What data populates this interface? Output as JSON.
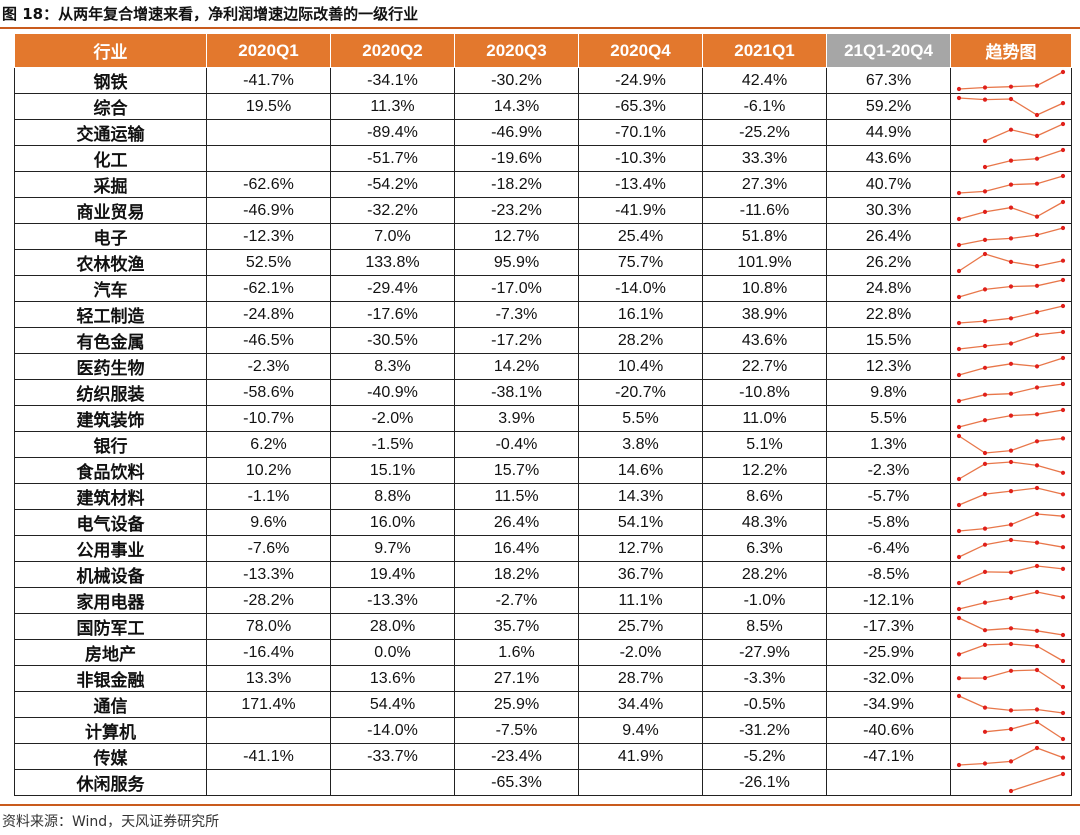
{
  "figure": {
    "title": "图 18：从两年复合增速来看，净利润增速边际改善的一级行业",
    "source": "资料来源：Wind，天风证券研究所"
  },
  "table": {
    "headers": [
      "行业",
      "2020Q1",
      "2020Q2",
      "2020Q3",
      "2020Q4",
      "2021Q1",
      "21Q1-20Q4",
      "趋势图"
    ],
    "colors": {
      "header_bg": "#e3782d",
      "diff_header_bg": "#a6a6a6",
      "sparkline_line": "#e8774a",
      "sparkline_marker": "#e0201b"
    },
    "rows": [
      {
        "name": "钢铁",
        "q1_20": "-41.7%",
        "q2_20": "-34.1%",
        "q3_20": "-30.2%",
        "q4_20": "-24.9%",
        "q1_21": "42.4%",
        "diff": "67.3%",
        "series": [
          -41.7,
          -34.1,
          -30.2,
          -24.9,
          42.4
        ]
      },
      {
        "name": "综合",
        "q1_20": "19.5%",
        "q2_20": "11.3%",
        "q3_20": "14.3%",
        "q4_20": "-65.3%",
        "q1_21": "-6.1%",
        "diff": "59.2%",
        "series": [
          19.5,
          11.3,
          14.3,
          -65.3,
          -6.1
        ]
      },
      {
        "name": "交通运输",
        "q1_20": "",
        "q2_20": "-89.4%",
        "q3_20": "-46.9%",
        "q4_20": "-70.1%",
        "q1_21": "-25.2%",
        "diff": "44.9%",
        "series": [
          null,
          -89.4,
          -46.9,
          -70.1,
          -25.2
        ]
      },
      {
        "name": "化工",
        "q1_20": "",
        "q2_20": "-51.7%",
        "q3_20": "-19.6%",
        "q4_20": "-10.3%",
        "q1_21": "33.3%",
        "diff": "43.6%",
        "series": [
          null,
          -51.7,
          -19.6,
          -10.3,
          33.3
        ]
      },
      {
        "name": "采掘",
        "q1_20": "-62.6%",
        "q2_20": "-54.2%",
        "q3_20": "-18.2%",
        "q4_20": "-13.4%",
        "q1_21": "27.3%",
        "diff": "40.7%",
        "series": [
          -62.6,
          -54.2,
          -18.2,
          -13.4,
          27.3
        ]
      },
      {
        "name": "商业贸易",
        "q1_20": "-46.9%",
        "q2_20": "-32.2%",
        "q3_20": "-23.2%",
        "q4_20": "-41.9%",
        "q1_21": "-11.6%",
        "diff": "30.3%",
        "series": [
          -46.9,
          -32.2,
          -23.2,
          -41.9,
          -11.6
        ]
      },
      {
        "name": "电子",
        "q1_20": "-12.3%",
        "q2_20": "7.0%",
        "q3_20": "12.7%",
        "q4_20": "25.4%",
        "q1_21": "51.8%",
        "diff": "26.4%",
        "series": [
          -12.3,
          7.0,
          12.7,
          25.4,
          51.8
        ]
      },
      {
        "name": "农林牧渔",
        "q1_20": "52.5%",
        "q2_20": "133.8%",
        "q3_20": "95.9%",
        "q4_20": "75.7%",
        "q1_21": "101.9%",
        "diff": "26.2%",
        "series": [
          52.5,
          133.8,
          95.9,
          75.7,
          101.9
        ]
      },
      {
        "name": "汽车",
        "q1_20": "-62.1%",
        "q2_20": "-29.4%",
        "q3_20": "-17.0%",
        "q4_20": "-14.0%",
        "q1_21": "10.8%",
        "diff": "24.8%",
        "series": [
          -62.1,
          -29.4,
          -17.0,
          -14.0,
          10.8
        ]
      },
      {
        "name": "轻工制造",
        "q1_20": "-24.8%",
        "q2_20": "-17.6%",
        "q3_20": "-7.3%",
        "q4_20": "16.1%",
        "q1_21": "38.9%",
        "diff": "22.8%",
        "series": [
          -24.8,
          -17.6,
          -7.3,
          16.1,
          38.9
        ]
      },
      {
        "name": "有色金属",
        "q1_20": "-46.5%",
        "q2_20": "-30.5%",
        "q3_20": "-17.2%",
        "q4_20": "28.2%",
        "q1_21": "43.6%",
        "diff": "15.5%",
        "series": [
          -46.5,
          -30.5,
          -17.2,
          28.2,
          43.6
        ]
      },
      {
        "name": "医药生物",
        "q1_20": "-2.3%",
        "q2_20": "8.3%",
        "q3_20": "14.2%",
        "q4_20": "10.4%",
        "q1_21": "22.7%",
        "diff": "12.3%",
        "series": [
          -2.3,
          8.3,
          14.2,
          10.4,
          22.7
        ]
      },
      {
        "name": "纺织服装",
        "q1_20": "-58.6%",
        "q2_20": "-40.9%",
        "q3_20": "-38.1%",
        "q4_20": "-20.7%",
        "q1_21": "-10.8%",
        "diff": "9.8%",
        "series": [
          -58.6,
          -40.9,
          -38.1,
          -20.7,
          -10.8
        ]
      },
      {
        "name": "建筑装饰",
        "q1_20": "-10.7%",
        "q2_20": "-2.0%",
        "q3_20": "3.9%",
        "q4_20": "5.5%",
        "q1_21": "11.0%",
        "diff": "5.5%",
        "series": [
          -10.7,
          -2.0,
          3.9,
          5.5,
          11.0
        ]
      },
      {
        "name": "银行",
        "q1_20": "6.2%",
        "q2_20": "-1.5%",
        "q3_20": "-0.4%",
        "q4_20": "3.8%",
        "q1_21": "5.1%",
        "diff": "1.3%",
        "series": [
          6.2,
          -1.5,
          -0.4,
          3.8,
          5.1
        ]
      },
      {
        "name": "食品饮料",
        "q1_20": "10.2%",
        "q2_20": "15.1%",
        "q3_20": "15.7%",
        "q4_20": "14.6%",
        "q1_21": "12.2%",
        "diff": "-2.3%",
        "series": [
          10.2,
          15.1,
          15.7,
          14.6,
          12.2
        ]
      },
      {
        "name": "建筑材料",
        "q1_20": "-1.1%",
        "q2_20": "8.8%",
        "q3_20": "11.5%",
        "q4_20": "14.3%",
        "q1_21": "8.6%",
        "diff": "-5.7%",
        "series": [
          -1.1,
          8.8,
          11.5,
          14.3,
          8.6
        ]
      },
      {
        "name": "电气设备",
        "q1_20": "9.6%",
        "q2_20": "16.0%",
        "q3_20": "26.4%",
        "q4_20": "54.1%",
        "q1_21": "48.3%",
        "diff": "-5.8%",
        "series": [
          9.6,
          16.0,
          26.4,
          54.1,
          48.3
        ]
      },
      {
        "name": "公用事业",
        "q1_20": "-7.6%",
        "q2_20": "9.7%",
        "q3_20": "16.4%",
        "q4_20": "12.7%",
        "q1_21": "6.3%",
        "diff": "-6.4%",
        "series": [
          -7.6,
          9.7,
          16.4,
          12.7,
          6.3
        ]
      },
      {
        "name": "机械设备",
        "q1_20": "-13.3%",
        "q2_20": "19.4%",
        "q3_20": "18.2%",
        "q4_20": "36.7%",
        "q1_21": "28.2%",
        "diff": "-8.5%",
        "series": [
          -13.3,
          19.4,
          18.2,
          36.7,
          28.2
        ]
      },
      {
        "name": "家用电器",
        "q1_20": "-28.2%",
        "q2_20": "-13.3%",
        "q3_20": "-2.7%",
        "q4_20": "11.1%",
        "q1_21": "-1.0%",
        "diff": "-12.1%",
        "series": [
          -28.2,
          -13.3,
          -2.7,
          11.1,
          -1.0
        ]
      },
      {
        "name": "国防军工",
        "q1_20": "78.0%",
        "q2_20": "28.0%",
        "q3_20": "35.7%",
        "q4_20": "25.7%",
        "q1_21": "8.5%",
        "diff": "-17.3%",
        "series": [
          78.0,
          28.0,
          35.7,
          25.7,
          8.5
        ]
      },
      {
        "name": "房地产",
        "q1_20": "-16.4%",
        "q2_20": "0.0%",
        "q3_20": "1.6%",
        "q4_20": "-2.0%",
        "q1_21": "-27.9%",
        "diff": "-25.9%",
        "series": [
          -16.4,
          0.0,
          1.6,
          -2.0,
          -27.9
        ]
      },
      {
        "name": "非银金融",
        "q1_20": "13.3%",
        "q2_20": "13.6%",
        "q3_20": "27.1%",
        "q4_20": "28.7%",
        "q1_21": "-3.3%",
        "diff": "-32.0%",
        "series": [
          13.3,
          13.6,
          27.1,
          28.7,
          -3.3
        ]
      },
      {
        "name": "通信",
        "q1_20": "171.4%",
        "q2_20": "54.4%",
        "q3_20": "25.9%",
        "q4_20": "34.4%",
        "q1_21": "-0.5%",
        "diff": "-34.9%",
        "series": [
          171.4,
          54.4,
          25.9,
          34.4,
          -0.5
        ]
      },
      {
        "name": "计算机",
        "q1_20": "",
        "q2_20": "-14.0%",
        "q3_20": "-7.5%",
        "q4_20": "9.4%",
        "q1_21": "-31.2%",
        "diff": "-40.6%",
        "series": [
          null,
          -14.0,
          -7.5,
          9.4,
          -31.2
        ]
      },
      {
        "name": "传媒",
        "q1_20": "-41.1%",
        "q2_20": "-33.7%",
        "q3_20": "-23.4%",
        "q4_20": "41.9%",
        "q1_21": "-5.2%",
        "diff": "-47.1%",
        "series": [
          -41.1,
          -33.7,
          -23.4,
          41.9,
          -5.2
        ]
      },
      {
        "name": "休闲服务",
        "q1_20": "",
        "q2_20": "",
        "q3_20": "-65.3%",
        "q4_20": "",
        "q1_21": "-26.1%",
        "diff": "",
        "series": [
          null,
          null,
          -65.3,
          null,
          -26.1
        ]
      }
    ]
  }
}
